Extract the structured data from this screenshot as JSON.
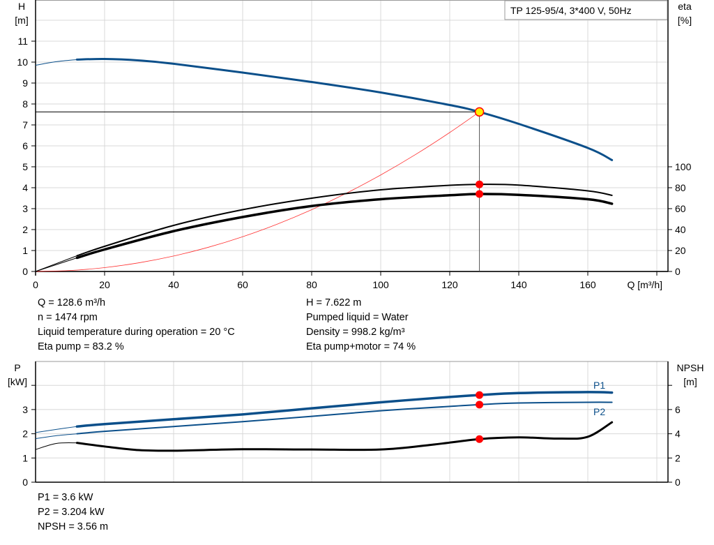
{
  "chart_data": [
    {
      "type": "line",
      "title": "TP 125-95/4, 3*400 V, 50Hz",
      "xlabel": "Q [m³/h]",
      "ylabel_left": [
        "H",
        "[m]"
      ],
      "ylabel_right": [
        "eta",
        "[%]"
      ],
      "xlim": [
        0,
        180
      ],
      "ylim_left": [
        0,
        13
      ],
      "ylim_right": [
        0,
        100
      ],
      "x_ticks": [
        "0",
        "20",
        "40",
        "60",
        "80",
        "100",
        "120",
        "140",
        "160"
      ],
      "y_ticks_left": [
        "0",
        "1",
        "2",
        "3",
        "4",
        "5",
        "6",
        "7",
        "8",
        "9",
        "10",
        "11"
      ],
      "y_ticks_right": [
        "0",
        "20",
        "40",
        "60",
        "80",
        "100"
      ],
      "grid": true,
      "series": [
        {
          "key": "H",
          "axis": "left",
          "color": "#0b4f8a",
          "x": [
            0,
            6,
            12,
            20,
            30,
            40,
            60,
            80,
            100,
            120,
            128.6,
            140,
            160,
            167
          ],
          "y": [
            9.85,
            10.02,
            10.12,
            10.15,
            10.08,
            9.92,
            9.5,
            9.05,
            8.55,
            7.95,
            7.62,
            7.05,
            5.9,
            5.32
          ]
        },
        {
          "key": "eta_pump",
          "axis": "right",
          "color": "#000000",
          "x": [
            0,
            12,
            20,
            40,
            60,
            80,
            100,
            120,
            128.6,
            140,
            160,
            167
          ],
          "y": [
            0,
            15,
            24,
            44,
            59,
            70,
            78,
            82.3,
            83.2,
            82.5,
            77,
            72.7
          ]
        },
        {
          "key": "eta_pump_motor",
          "axis": "right",
          "color": "#000000",
          "x": [
            0,
            12,
            20,
            40,
            60,
            80,
            100,
            120,
            128.6,
            140,
            160,
            167
          ],
          "y": [
            0,
            13,
            21,
            38.5,
            52,
            62.5,
            69,
            72.8,
            74,
            73.2,
            69,
            64.7
          ]
        },
        {
          "key": "system",
          "axis": "left",
          "color": "#ff3030",
          "x": [
            0,
            10,
            20,
            30,
            40,
            50,
            60,
            70,
            80,
            90,
            100,
            110,
            120,
            128.6
          ],
          "y": [
            0,
            0.046,
            0.184,
            0.415,
            0.737,
            1.152,
            1.659,
            2.258,
            2.949,
            3.733,
            4.609,
            5.577,
            6.637,
            7.622
          ]
        }
      ],
      "duty_point": {
        "Q": 128.6,
        "H": 7.622,
        "eta_pump": 83.2,
        "eta_pump_motor": 74
      }
    },
    {
      "type": "line",
      "xlim": [
        0,
        180
      ],
      "ylabel_left": [
        "P",
        "[kW]"
      ],
      "ylabel_right": [
        "NPSH",
        "[m]"
      ],
      "ylim_left": [
        0,
        5
      ],
      "ylim_right": [
        0,
        10
      ],
      "y_ticks_left": [
        "0",
        "1",
        "2",
        "3"
      ],
      "y_ticks_right": [
        "0",
        "2",
        "4",
        "6"
      ],
      "grid": true,
      "series": [
        {
          "name": "P1",
          "axis": "left",
          "color": "#0b4f8a",
          "x": [
            0,
            6,
            12,
            20,
            40,
            60,
            80,
            100,
            120,
            128.6,
            140,
            160,
            167
          ],
          "y": [
            2.05,
            2.18,
            2.3,
            2.4,
            2.6,
            2.8,
            3.05,
            3.3,
            3.52,
            3.6,
            3.68,
            3.72,
            3.7
          ]
        },
        {
          "name": "P2",
          "axis": "left",
          "color": "#0b4f8a",
          "x": [
            0,
            6,
            12,
            20,
            40,
            60,
            80,
            100,
            120,
            128.6,
            140,
            160,
            167
          ],
          "y": [
            1.8,
            1.92,
            2.0,
            2.1,
            2.3,
            2.5,
            2.72,
            2.95,
            3.13,
            3.204,
            3.27,
            3.3,
            3.3
          ]
        },
        {
          "key": "NPSH",
          "axis": "right",
          "color": "#000000",
          "x": [
            0,
            6,
            12,
            20,
            30,
            40,
            60,
            80,
            100,
            115,
            128.6,
            140,
            152,
            160,
            167
          ],
          "y": [
            2.7,
            3.2,
            3.25,
            2.95,
            2.65,
            2.6,
            2.72,
            2.7,
            2.7,
            3.1,
            3.56,
            3.7,
            3.6,
            3.75,
            4.95
          ]
        }
      ],
      "duty_point": {
        "Q": 128.6,
        "P1": 3.6,
        "P2": 3.204,
        "NPSH": 3.56
      }
    }
  ],
  "info_top_left": [
    "Q = 128.6 m³/h",
    "n = 1474 rpm",
    "Liquid temperature during operation = 20 °C",
    "Eta pump = 83.2 %"
  ],
  "info_top_right": [
    "H = 7.622 m",
    "Pumped liquid = Water",
    "Density = 998.2 kg/m³",
    "Eta pump+motor = 74 %"
  ],
  "info_bottom": [
    "P1 = 3.6 kW",
    "P2 = 3.204 kW",
    "NPSH = 3.56 m"
  ]
}
